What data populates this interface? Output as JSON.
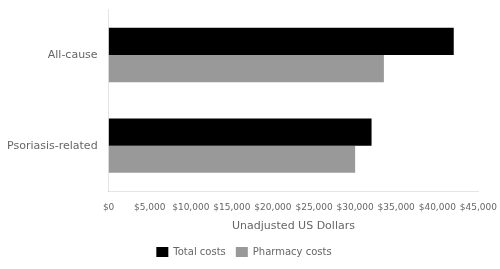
{
  "chart_data": {
    "type": "bar",
    "orientation": "horizontal",
    "categories": [
      "All-cause",
      "Psoriasis-related"
    ],
    "series": [
      {
        "name": "Total costs",
        "color": "#000000",
        "values": [
          42000,
          32000
        ]
      },
      {
        "name": "Pharmacy costs",
        "color": "#999999",
        "values": [
          33500,
          30000
        ]
      }
    ],
    "xlabel": "Unadjusted US Dollars",
    "xlim": [
      0,
      45000
    ],
    "xticks": [
      {
        "value": 0,
        "label": "$0"
      },
      {
        "value": 5000,
        "label": "$5,000"
      },
      {
        "value": 10000,
        "label": "$10,000"
      },
      {
        "value": 15000,
        "label": "$15,000"
      },
      {
        "value": 20000,
        "label": "$20,000"
      },
      {
        "value": 25000,
        "label": "$25,000"
      },
      {
        "value": 30000,
        "label": "$30,000"
      },
      {
        "value": 35000,
        "label": "$35,000"
      },
      {
        "value": 40000,
        "label": "$40,000"
      },
      {
        "value": 45000,
        "label": "$45,000"
      }
    ],
    "grid": false,
    "legend": "bottom"
  }
}
